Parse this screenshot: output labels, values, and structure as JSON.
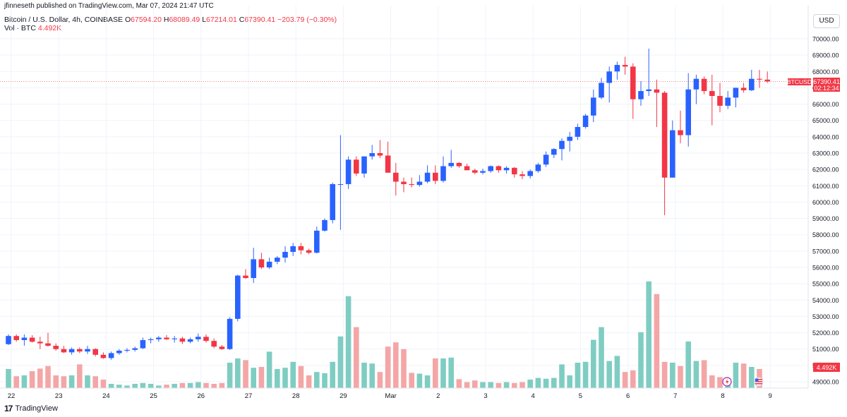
{
  "header": {
    "published_by": "jfinneseth published on TradingView.com, Mar 07, 2024 21:47 UTC"
  },
  "legend": {
    "symbol": "Bitcoin / U.S. Dollar, 4h, COINBASE",
    "o_label": "O",
    "o_value": "67594.20",
    "h_label": "H",
    "h_value": "68089.49",
    "l_label": "L",
    "l_value": "67214.01",
    "c_label": "C",
    "c_value": "67390.41",
    "change": "−203.79 (−0.30%)",
    "vol_label": "Vol · BTC",
    "vol_value": "4.492K"
  },
  "currency_button": "USD",
  "price_badge": {
    "symbol": "BTCUSD",
    "price": "67390.41",
    "countdown": "02:12:34"
  },
  "volume_badge": "4.492K",
  "footer": {
    "brand": "TradingView"
  },
  "colors": {
    "up": "#2962ff",
    "down": "#f23645",
    "vol_up": "#7fcdc2",
    "vol_down": "#f4a6a6",
    "grid": "#f0f3fa"
  },
  "chart_data": {
    "type": "candlestick",
    "interval": "4h",
    "y_ticks": [
      "70000.00",
      "69000.00",
      "68000.00",
      "67000.00",
      "66000.00",
      "65000.00",
      "64000.00",
      "63000.00",
      "62000.00",
      "61000.00",
      "60000.00",
      "59000.00",
      "58000.00",
      "57000.00",
      "56000.00",
      "55000.00",
      "54000.00",
      "53000.00",
      "52000.00",
      "51000.00",
      "50000.00",
      "49000.00"
    ],
    "ylim": [
      48500,
      70600
    ],
    "x_ticks": [
      {
        "label": "22",
        "index": 0
      },
      {
        "label": "23",
        "index": 6
      },
      {
        "label": "24",
        "index": 12
      },
      {
        "label": "25",
        "index": 18
      },
      {
        "label": "26",
        "index": 24
      },
      {
        "label": "27",
        "index": 30
      },
      {
        "label": "28",
        "index": 36
      },
      {
        "label": "29",
        "index": 42
      },
      {
        "label": "Mar",
        "index": 48
      },
      {
        "label": "2",
        "index": 54
      },
      {
        "label": "3",
        "index": 60
      },
      {
        "label": "4",
        "index": 66
      },
      {
        "label": "5",
        "index": 72
      },
      {
        "label": "6",
        "index": 78
      },
      {
        "label": "7",
        "index": 84
      },
      {
        "label": "8",
        "index": 90
      },
      {
        "label": "9",
        "index": 96
      }
    ],
    "candles": [
      [
        51300,
        51900,
        51250,
        51800
      ],
      [
        51800,
        51900,
        51450,
        51550
      ],
      [
        51550,
        51900,
        51200,
        51700
      ],
      [
        51700,
        51850,
        51400,
        51450
      ],
      [
        51450,
        51750,
        51000,
        51350
      ],
      [
        51350,
        52000,
        51150,
        51200
      ],
      [
        51200,
        51350,
        50900,
        51000
      ],
      [
        51000,
        51200,
        50750,
        50800
      ],
      [
        50800,
        51100,
        50650,
        51000
      ],
      [
        51000,
        51100,
        50750,
        50850
      ],
      [
        50850,
        51200,
        50700,
        51000
      ],
      [
        51000,
        51050,
        50550,
        50650
      ],
      [
        50650,
        50800,
        50400,
        50450
      ],
      [
        50450,
        50850,
        50350,
        50750
      ],
      [
        50750,
        51000,
        50650,
        50900
      ],
      [
        50900,
        51050,
        50800,
        50950
      ],
      [
        50950,
        51150,
        50850,
        51050
      ],
      [
        51050,
        51700,
        51000,
        51550
      ],
      [
        51550,
        51700,
        51350,
        51600
      ],
      [
        51600,
        51800,
        51450,
        51700
      ],
      [
        51700,
        51850,
        51550,
        51600
      ],
      [
        51600,
        51800,
        51400,
        51650
      ],
      [
        51650,
        51750,
        51300,
        51450
      ],
      [
        51450,
        51700,
        51350,
        51600
      ],
      [
        51600,
        51950,
        51450,
        51750
      ],
      [
        51750,
        51900,
        51400,
        51500
      ],
      [
        51500,
        51650,
        51050,
        51150
      ],
      [
        51150,
        51250,
        50950,
        51000
      ],
      [
        51000,
        52950,
        50950,
        52850
      ],
      [
        52850,
        55550,
        52700,
        55500
      ],
      [
        55500,
        55900,
        55300,
        55350
      ],
      [
        55350,
        57200,
        55050,
        56500
      ],
      [
        56500,
        56900,
        55900,
        56000
      ],
      [
        56000,
        56600,
        55900,
        56350
      ],
      [
        56350,
        56700,
        56200,
        56600
      ],
      [
        56600,
        57300,
        56300,
        56950
      ],
      [
        56950,
        57500,
        56700,
        57300
      ],
      [
        57300,
        57500,
        56800,
        57050
      ],
      [
        57050,
        57150,
        56800,
        56900
      ],
      [
        56900,
        58500,
        56850,
        58250
      ],
      [
        58250,
        59000,
        58200,
        58900
      ],
      [
        58900,
        61200,
        58700,
        61100
      ],
      [
        61100,
        64100,
        58300,
        61100
      ],
      [
        61100,
        62800,
        60800,
        62600
      ],
      [
        62600,
        62800,
        61600,
        61750
      ],
      [
        61750,
        62800,
        61500,
        62800
      ],
      [
        62800,
        63500,
        62600,
        63000
      ],
      [
        63000,
        63800,
        62700,
        62850
      ],
      [
        62850,
        63700,
        62000,
        61800
      ],
      [
        61800,
        62400,
        60400,
        61250
      ],
      [
        61250,
        61500,
        60600,
        61100
      ],
      [
        61100,
        61500,
        60900,
        61050
      ],
      [
        61050,
        61650,
        60950,
        61250
      ],
      [
        61250,
        62250,
        61150,
        61800
      ],
      [
        61800,
        62250,
        61100,
        61300
      ],
      [
        61300,
        62800,
        61200,
        62200
      ],
      [
        62200,
        63200,
        62100,
        62400
      ],
      [
        62400,
        62450,
        62100,
        62200
      ],
      [
        62200,
        62350,
        61950,
        61950
      ],
      [
        61950,
        62050,
        61700,
        61800
      ],
      [
        61800,
        62050,
        61700,
        61900
      ],
      [
        61900,
        62250,
        61800,
        62200
      ],
      [
        62200,
        62250,
        61800,
        61950
      ],
      [
        61950,
        62200,
        61750,
        62100
      ],
      [
        62100,
        62150,
        61500,
        61700
      ],
      [
        61700,
        61900,
        61400,
        61600
      ],
      [
        61600,
        62000,
        61450,
        61900
      ],
      [
        61900,
        62400,
        61800,
        62300
      ],
      [
        62300,
        63100,
        62150,
        62900
      ],
      [
        62900,
        63300,
        62700,
        63250
      ],
      [
        63250,
        63900,
        62550,
        63750
      ],
      [
        63750,
        64300,
        63100,
        64000
      ],
      [
        64000,
        64800,
        63800,
        64600
      ],
      [
        64600,
        65400,
        64500,
        65300
      ],
      [
        65300,
        66900,
        64900,
        66400
      ],
      [
        66400,
        67600,
        66300,
        67300
      ],
      [
        67300,
        68300,
        66100,
        68000
      ],
      [
        68000,
        68600,
        67500,
        68400
      ],
      [
        68400,
        68900,
        67800,
        68300
      ],
      [
        68300,
        68500,
        65100,
        66300
      ],
      [
        66300,
        67400,
        65900,
        66800
      ],
      [
        66800,
        69400,
        66500,
        66900
      ],
      [
        66900,
        67500,
        64600,
        66700
      ],
      [
        66700,
        66800,
        59200,
        61500
      ],
      [
        61500,
        65000,
        61500,
        64400
      ],
      [
        64400,
        65600,
        63600,
        64100
      ],
      [
        64100,
        67900,
        63400,
        66900
      ],
      [
        66900,
        67800,
        66000,
        67550
      ],
      [
        67550,
        67700,
        66600,
        66800
      ],
      [
        66800,
        67800,
        64700,
        66500
      ],
      [
        66500,
        67300,
        65500,
        65900
      ],
      [
        65900,
        66800,
        65700,
        66400
      ],
      [
        66400,
        66900,
        65800,
        67000
      ],
      [
        67000,
        67300,
        66700,
        66850
      ],
      [
        66850,
        68100,
        66800,
        67550
      ],
      [
        67550,
        68100,
        67000,
        67500
      ],
      [
        67500,
        68000,
        67300,
        67390
      ]
    ],
    "volume": [
      0.45,
      0.28,
      0.3,
      0.4,
      0.46,
      0.52,
      0.3,
      0.28,
      0.3,
      0.56,
      0.3,
      0.28,
      0.2,
      0.1,
      0.08,
      0.06,
      0.1,
      0.12,
      0.1,
      0.06,
      0.08,
      0.1,
      0.12,
      0.12,
      0.14,
      0.12,
      0.1,
      0.12,
      0.6,
      0.7,
      0.66,
      0.48,
      0.5,
      0.86,
      0.45,
      0.48,
      0.62,
      0.52,
      0.3,
      0.38,
      0.35,
      0.62,
      1.22,
      2.17,
      1.44,
      0.6,
      0.58,
      0.38,
      0.98,
      1.08,
      0.92,
      0.36,
      0.34,
      0.3,
      0.7,
      0.7,
      0.72,
      0.21,
      0.14,
      0.18,
      0.14,
      0.14,
      0.12,
      0.14,
      0.12,
      0.14,
      0.2,
      0.24,
      0.22,
      0.24,
      0.56,
      0.3,
      0.6,
      0.62,
      1.14,
      1.44,
      0.64,
      0.76,
      0.38,
      0.42,
      1.32,
      2.52,
      2.22,
      0.62,
      0.6,
      0.52,
      1.1,
      0.64,
      0.66,
      0.3,
      0.26,
      0.24,
      0.6,
      0.58,
      0.5,
      0.45
    ]
  }
}
